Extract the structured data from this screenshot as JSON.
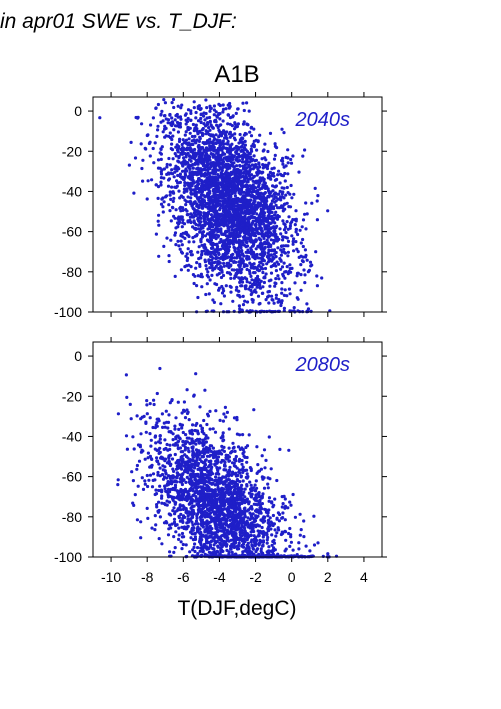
{
  "header": {
    "title_text": "in apr01 SWE vs. T_DJF:"
  },
  "figure": {
    "scenario": "A1B",
    "xlabel": "T(DJF,degC)"
  },
  "colors": {
    "points": "#1f1fc8",
    "axis": "#000000"
  },
  "chart_data": [
    {
      "type": "scatter",
      "period_label": "2040s",
      "xlim": [
        -11,
        5
      ],
      "ylim": [
        -100,
        7
      ],
      "xticks": [
        -10,
        -8,
        -6,
        -4,
        -2,
        0,
        2,
        4
      ],
      "yticks": [
        0,
        -20,
        -40,
        -60,
        -80,
        -100
      ],
      "x_tick_labels_shown": false,
      "cloud": {
        "center_x": -3.5,
        "center_y": -45,
        "spread_x": 1.8,
        "spread_y": 22,
        "count": 3400,
        "seed": 7
      }
    },
    {
      "type": "scatter",
      "period_label": "2080s",
      "xlim": [
        -11,
        5
      ],
      "ylim": [
        -100,
        7
      ],
      "xticks": [
        -10,
        -8,
        -6,
        -4,
        -2,
        0,
        2,
        4
      ],
      "yticks": [
        0,
        -20,
        -40,
        -60,
        -80,
        -100
      ],
      "x_tick_labels_shown": true,
      "cloud": {
        "center_x": -4,
        "center_y": -75,
        "spread_x": 1.9,
        "spread_y": 18,
        "count": 2600,
        "seed": 19
      }
    }
  ]
}
